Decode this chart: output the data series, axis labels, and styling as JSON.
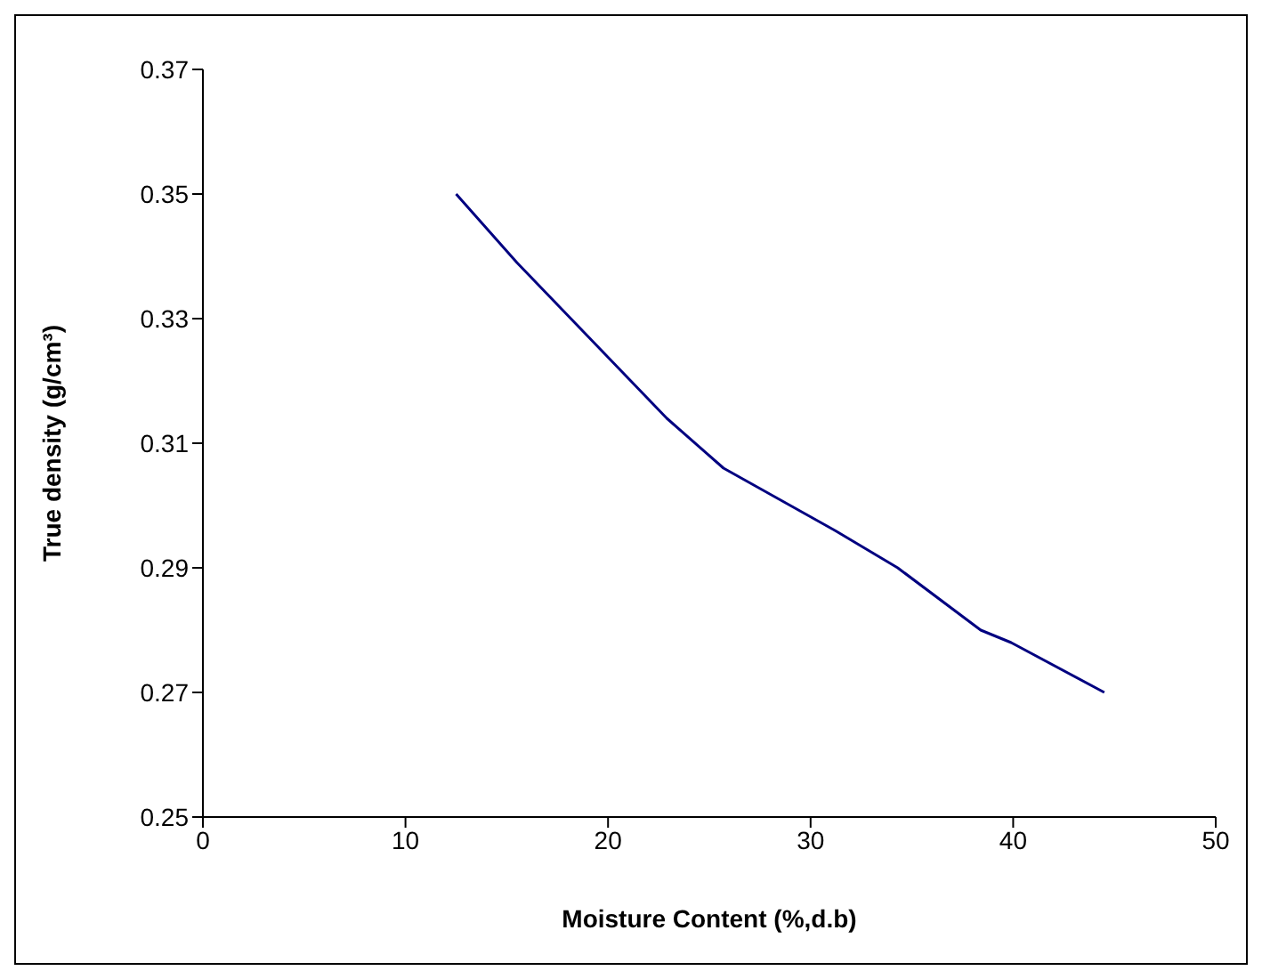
{
  "chart_data": {
    "type": "line",
    "xlabel": "Moisture Content (%,d.b)",
    "ylabel": "True density (g/cm³)",
    "x": [
      12.5,
      15.5,
      22.9,
      25.7,
      31.2,
      34.3,
      38.4,
      39.9,
      44.5
    ],
    "series": [
      {
        "color": "#000080",
        "values": [
          0.35,
          0.339,
          0.314,
          0.306,
          0.296,
          0.29,
          0.28,
          0.278,
          0.27
        ]
      }
    ],
    "xlim": [
      0,
      50
    ],
    "xticks": [
      0,
      10,
      20,
      30,
      40,
      50
    ],
    "ylim": [
      0.25,
      0.37
    ],
    "yticks": [
      0.25,
      0.27,
      0.29,
      0.31,
      0.33,
      0.35,
      0.37
    ],
    "grid": false,
    "legend": false,
    "marker": "none",
    "line_style": "solid"
  }
}
